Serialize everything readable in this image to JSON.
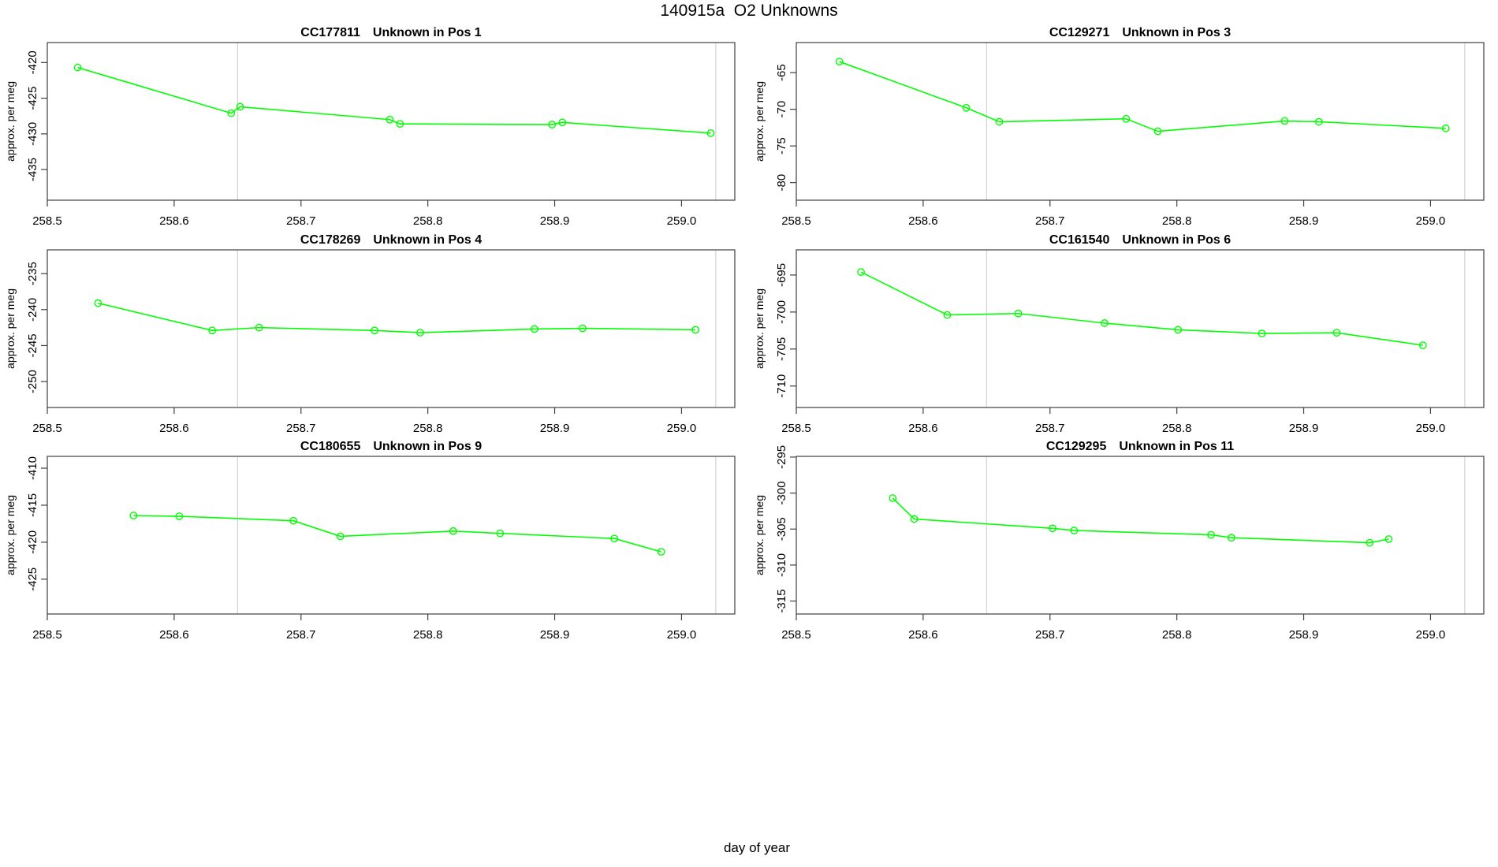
{
  "chart_data": {
    "type": "line",
    "figure_title": "140915a  O2 Unknowns",
    "xlabel": "day of year",
    "ylabel": "approx. per meg",
    "x_ticks": [
      258.5,
      258.6,
      258.7,
      258.8,
      258.9,
      259.0
    ],
    "xlim": [
      258.5,
      259.042
    ],
    "reference_lines_x": [
      258.65,
      259.027
    ],
    "line_color": "#00ff00",
    "reference_line_color": "#cccccc",
    "box_color": "#404040",
    "marker": "open-circle",
    "legend": "none",
    "grid": "off",
    "charts": [
      {
        "id": "CC177811",
        "title": "Unknown in Pos 1",
        "position": 1,
        "ylim": [
          -439.3,
          -417.2
        ],
        "y_ticks": [
          -435,
          -430,
          -425,
          -420
        ],
        "points": [
          [
            258.524,
            -420.7
          ],
          [
            258.645,
            -427.1
          ],
          [
            258.652,
            -426.2
          ],
          [
            258.77,
            -428.0
          ],
          [
            258.778,
            -428.6
          ],
          [
            258.898,
            -428.7
          ],
          [
            258.906,
            -428.4
          ],
          [
            259.023,
            -429.9
          ]
        ]
      },
      {
        "id": "CC129271",
        "title": "Unknown in Pos 3",
        "position": 3,
        "ylim": [
          -82.4,
          -60.9
        ],
        "y_ticks": [
          -80,
          -75,
          -70,
          -65
        ],
        "points": [
          [
            258.534,
            -63.5
          ],
          [
            258.634,
            -69.8
          ],
          [
            258.66,
            -71.7
          ],
          [
            258.76,
            -71.3
          ],
          [
            258.785,
            -73.0
          ],
          [
            258.885,
            -71.6
          ],
          [
            258.912,
            -71.7
          ],
          [
            259.012,
            -72.6
          ]
        ]
      },
      {
        "id": "CC178269",
        "title": "Unknown in Pos 4",
        "position": 4,
        "ylim": [
          -253.6,
          -231.7
        ],
        "y_ticks": [
          -250,
          -245,
          -240,
          -235
        ],
        "points": [
          [
            258.54,
            -239.1
          ],
          [
            258.63,
            -242.9
          ],
          [
            258.667,
            -242.5
          ],
          [
            258.758,
            -242.9
          ],
          [
            258.794,
            -243.2
          ],
          [
            258.884,
            -242.7
          ],
          [
            258.922,
            -242.6
          ],
          [
            259.011,
            -242.8
          ]
        ]
      },
      {
        "id": "CC161540",
        "title": "Unknown in Pos 6",
        "position": 6,
        "ylim": [
          -712.9,
          -691.6
        ],
        "y_ticks": [
          -710,
          -705,
          -700,
          -695
        ],
        "points": [
          [
            258.551,
            -694.6
          ],
          [
            258.619,
            -700.4
          ],
          [
            258.675,
            -700.2
          ],
          [
            258.743,
            -701.5
          ],
          [
            258.801,
            -702.4
          ],
          [
            258.867,
            -702.9
          ],
          [
            258.926,
            -702.8
          ],
          [
            258.994,
            -704.5
          ]
        ]
      },
      {
        "id": "CC180655",
        "title": "Unknown in Pos 9",
        "position": 9,
        "ylim": [
          -429.7,
          -408.4
        ],
        "y_ticks": [
          -425,
          -420,
          -415,
          -410
        ],
        "points": [
          [
            258.568,
            -416.4
          ],
          [
            258.604,
            -416.5
          ],
          [
            258.694,
            -417.1
          ],
          [
            258.731,
            -419.2
          ],
          [
            258.82,
            -418.5
          ],
          [
            258.857,
            -418.8
          ],
          [
            258.947,
            -419.5
          ],
          [
            258.984,
            -421.3
          ]
        ]
      },
      {
        "id": "CC129295",
        "title": "Unknown in Pos 11",
        "position": 11,
        "ylim": [
          -316.8,
          -294.9
        ],
        "y_ticks": [
          -315,
          -310,
          -305,
          -300,
          -295
        ],
        "points": [
          [
            258.576,
            -300.7
          ],
          [
            258.593,
            -303.6
          ],
          [
            258.702,
            -304.9
          ],
          [
            258.719,
            -305.2
          ],
          [
            258.827,
            -305.8
          ],
          [
            258.843,
            -306.2
          ],
          [
            258.952,
            -306.9
          ],
          [
            258.967,
            -306.4
          ]
        ]
      }
    ]
  }
}
